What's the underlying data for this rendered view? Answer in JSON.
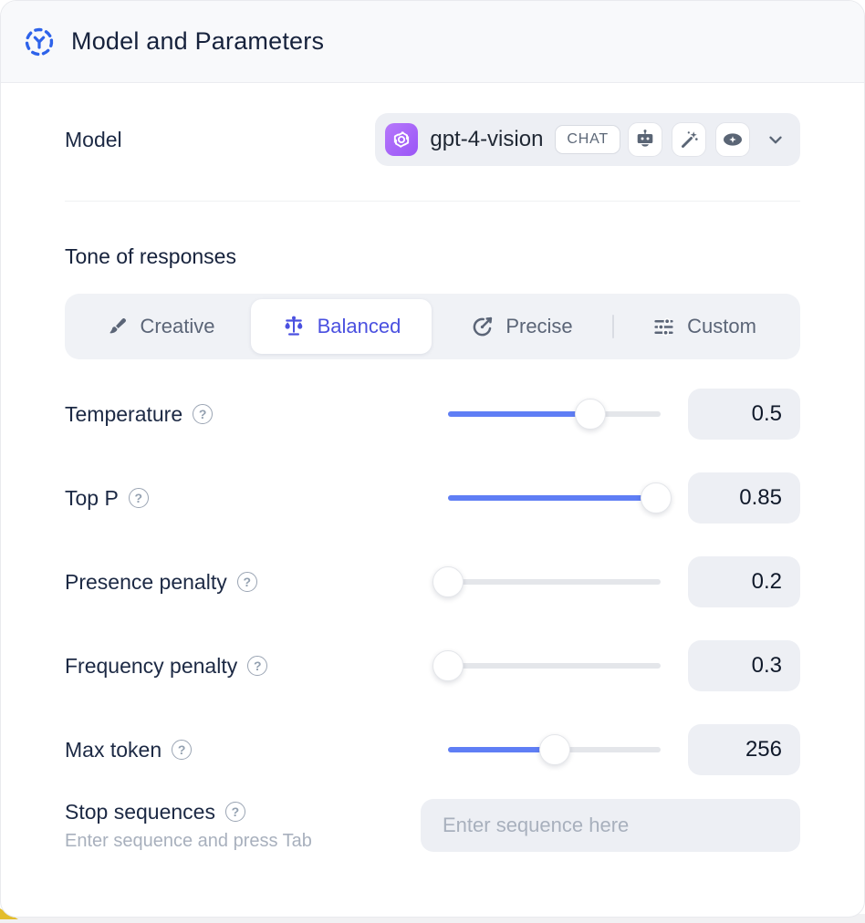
{
  "header": {
    "title": "Model and Parameters"
  },
  "model_row": {
    "label": "Model",
    "selected_model": "gpt-4-vision",
    "badge": "CHAT",
    "capability_icons": [
      "robot-icon",
      "magic-wand-icon",
      "vision-eye-icon"
    ]
  },
  "tone": {
    "label": "Tone of responses",
    "options": [
      {
        "label": "Creative",
        "icon": "paintbrush-icon",
        "active": false
      },
      {
        "label": "Balanced",
        "icon": "balance-scale-icon",
        "active": true
      },
      {
        "label": "Precise",
        "icon": "target-icon",
        "active": false
      },
      {
        "label": "Custom",
        "icon": "sliders-icon",
        "active": false
      }
    ]
  },
  "parameters": [
    {
      "label": "Temperature",
      "value": "0.5",
      "fill_pct": 67
    },
    {
      "label": "Top P",
      "value": "0.85",
      "fill_pct": 98
    },
    {
      "label": "Presence penalty",
      "value": "0.2",
      "fill_pct": 0
    },
    {
      "label": "Frequency penalty",
      "value": "0.3",
      "fill_pct": 0
    },
    {
      "label": "Max token",
      "value": "256",
      "fill_pct": 50
    }
  ],
  "stop_sequences": {
    "label": "Stop sequences",
    "hint": "Enter sequence and press Tab",
    "placeholder": "Enter sequence here"
  },
  "help_glyph": "?",
  "colors": {
    "accent_blue": "#5f7ef5",
    "active_indigo": "#4a50e0",
    "header_icon_blue": "#2e63ea",
    "icon_gray": "#5a6575",
    "field_bg": "#edeff4",
    "title_navy": "#16223c"
  }
}
